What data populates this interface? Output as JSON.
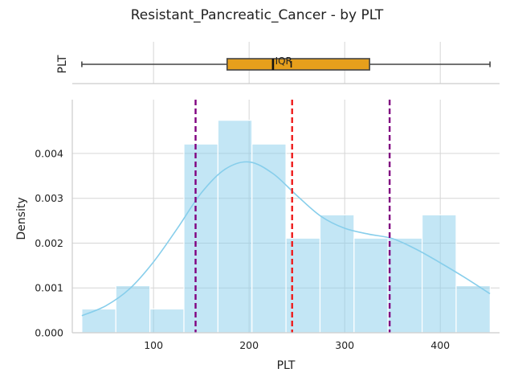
{
  "title": "Resistant_Pancreatic_Cancer - by PLT",
  "chart_data": [
    {
      "type": "box",
      "ylabel": "PLT",
      "annotation": "IQR",
      "whisker_low": 25,
      "q1": 177,
      "median": 225,
      "mean": 244,
      "q3": 326,
      "whisker_high": 452,
      "box_color": "#E69F1C",
      "xlim": [
        15,
        462
      ],
      "grid": true
    },
    {
      "type": "histogram",
      "xlabel": "PLT",
      "ylabel": "Density",
      "xlim": [
        15,
        462
      ],
      "ylim": [
        0,
        0.0052
      ],
      "xticks": [
        100,
        200,
        300,
        400
      ],
      "yticks": [
        "0.000",
        "0.001",
        "0.002",
        "0.003",
        "0.004"
      ],
      "bin_edges": [
        25,
        60.6,
        96.2,
        131.8,
        167.4,
        203,
        238.6,
        274.2,
        309.8,
        345.4,
        381,
        416.6,
        452.2
      ],
      "densities": [
        0.00053,
        0.00105,
        0.00053,
        0.00421,
        0.00474,
        0.00421,
        0.00211,
        0.00263,
        0.00211,
        0.00211,
        0.00263,
        0.00105
      ],
      "bar_color": "#87CEEB",
      "kde": {
        "x": [
          25,
          50,
          75,
          100,
          125,
          150,
          175,
          200,
          225,
          250,
          275,
          300,
          325,
          350,
          375,
          400,
          425,
          452
        ],
        "y": [
          0.00038,
          0.0006,
          0.00098,
          0.00158,
          0.00233,
          0.00312,
          0.00365,
          0.00381,
          0.00355,
          0.00306,
          0.0026,
          0.00233,
          0.0022,
          0.0021,
          0.00186,
          0.00156,
          0.00124,
          0.00087
        ],
        "color": "#87CEEB"
      },
      "reference_lines": [
        {
          "x": 144,
          "color": "#800080",
          "style": "dashed"
        },
        {
          "x": 245,
          "color": "#EE1C1C",
          "style": "dashed"
        },
        {
          "x": 347,
          "color": "#800080",
          "style": "dashed"
        }
      ],
      "grid": true
    }
  ]
}
